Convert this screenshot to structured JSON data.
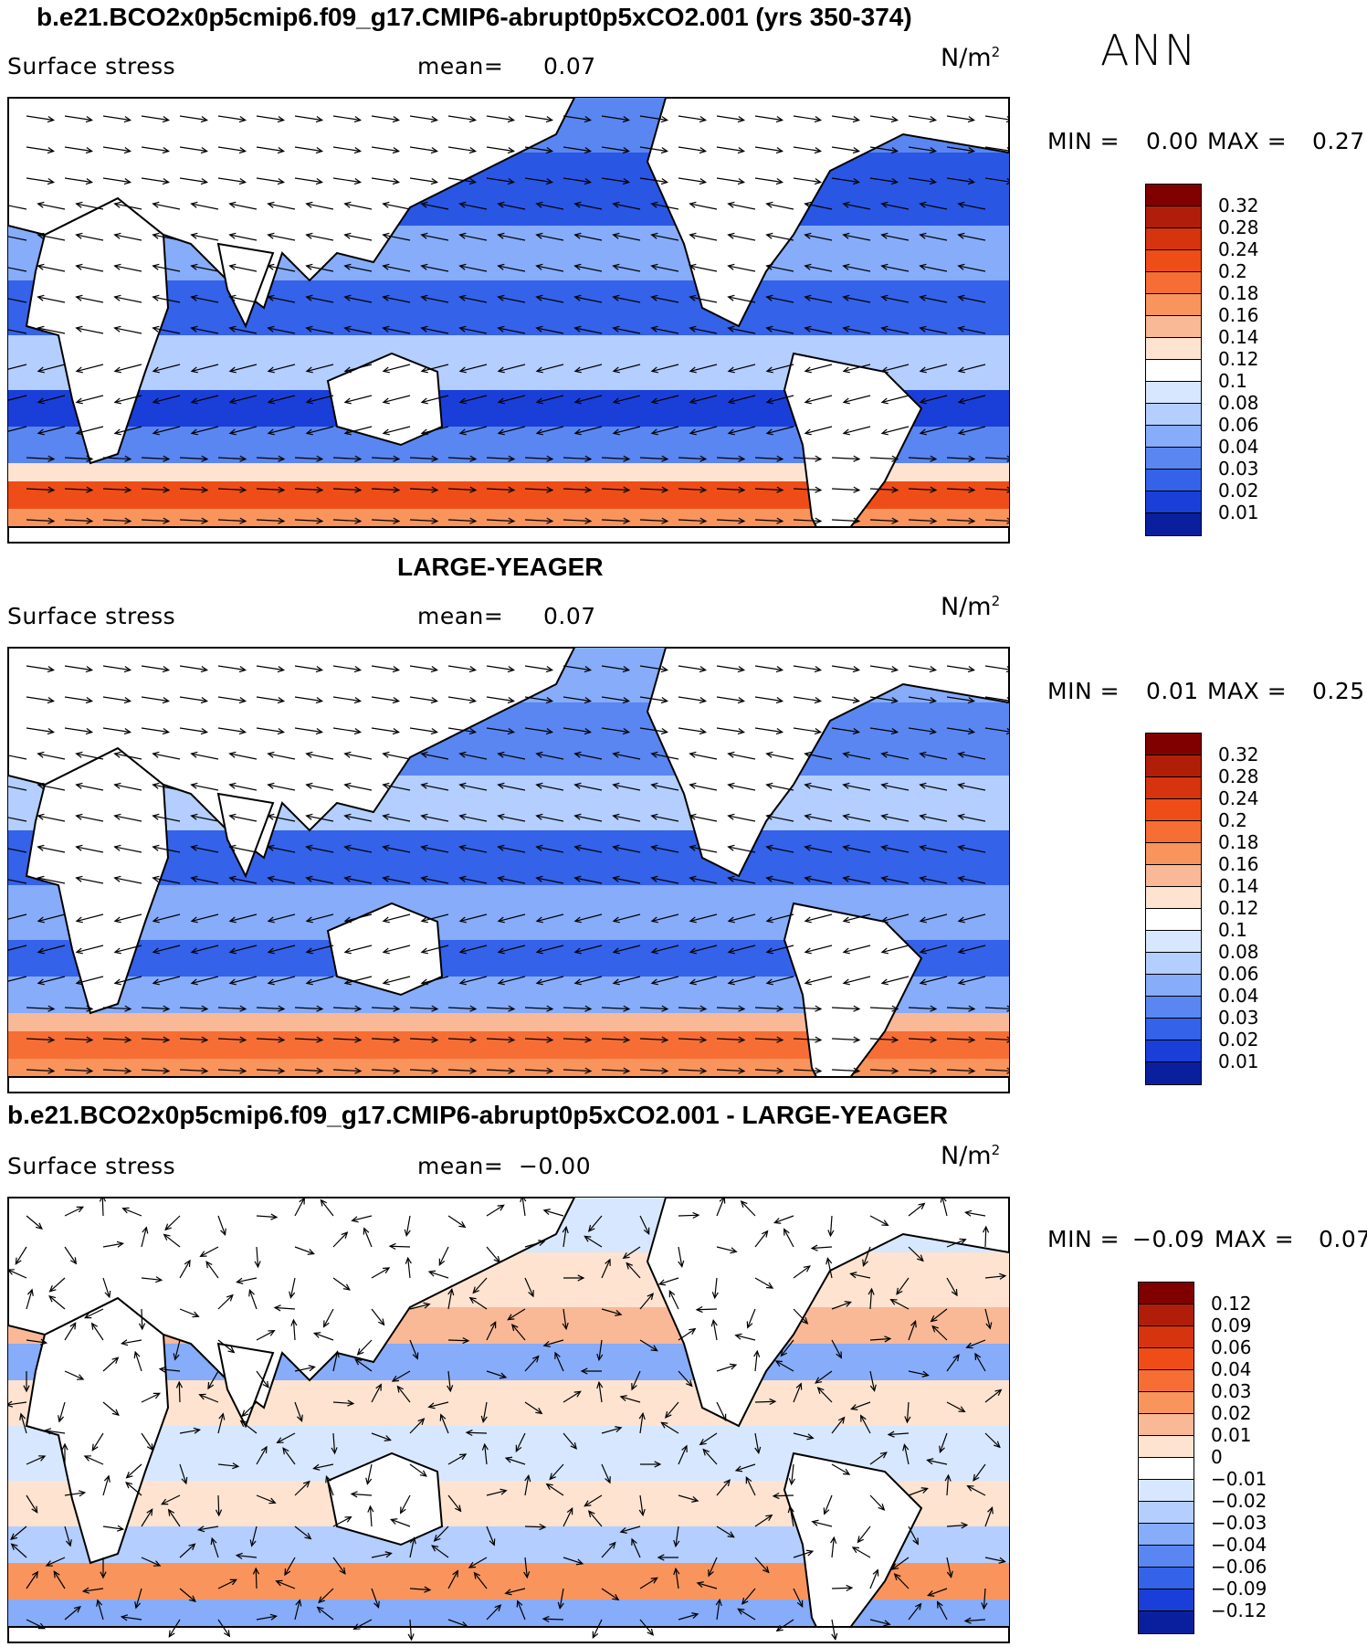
{
  "season": "ANN",
  "panels": [
    {
      "title": "b.e21.BCO2x0p5cmip6.f09_g17.CMIP6-abrupt0p5xCO2.001 (yrs 350-374)",
      "variable": "Surface stress",
      "mean_label": "mean=",
      "mean_value": "0.07",
      "units_base": "N/m",
      "units_exp": "2",
      "min_label": "MIN =",
      "min_value": "0.00",
      "max_label": "MAX =",
      "max_value": "0.27",
      "colorbar": {
        "ticks": [
          "0.32",
          "0.28",
          "0.24",
          "0.2",
          "0.18",
          "0.16",
          "0.14",
          "0.12",
          "0.1",
          "0.08",
          "0.06",
          "0.04",
          "0.03",
          "0.02",
          "0.01"
        ],
        "colors": [
          "#800000",
          "#b01e0a",
          "#d6330f",
          "#ef4d18",
          "#f76e35",
          "#f9945d",
          "#f9b896",
          "#fde3d0",
          "#ffffff",
          "#d7e7ff",
          "#b3ceff",
          "#86acfa",
          "#5a86f1",
          "#3462e8",
          "#1a3fd8",
          "#0a1f9e"
        ]
      }
    },
    {
      "title": "LARGE-YEAGER",
      "variable": "Surface stress",
      "mean_label": "mean=",
      "mean_value": "0.07",
      "units_base": "N/m",
      "units_exp": "2",
      "min_label": "MIN =",
      "min_value": "0.01",
      "max_label": "MAX =",
      "max_value": "0.25",
      "colorbar": {
        "ticks": [
          "0.32",
          "0.28",
          "0.24",
          "0.2",
          "0.18",
          "0.16",
          "0.14",
          "0.12",
          "0.1",
          "0.08",
          "0.06",
          "0.04",
          "0.03",
          "0.02",
          "0.01"
        ],
        "colors": [
          "#800000",
          "#b01e0a",
          "#d6330f",
          "#ef4d18",
          "#f76e35",
          "#f9945d",
          "#f9b896",
          "#fde3d0",
          "#ffffff",
          "#d7e7ff",
          "#b3ceff",
          "#86acfa",
          "#5a86f1",
          "#3462e8",
          "#1a3fd8",
          "#0a1f9e"
        ]
      }
    },
    {
      "title": "b.e21.BCO2x0p5cmip6.f09_g17.CMIP6-abrupt0p5xCO2.001 - LARGE-YEAGER",
      "variable": "Surface stress",
      "mean_label": "mean=",
      "mean_value": "−0.00",
      "units_base": "N/m",
      "units_exp": "2",
      "min_label": "MIN =",
      "min_value": "−0.09",
      "max_label": "MAX =",
      "max_value": "0.07",
      "colorbar": {
        "ticks": [
          "0.12",
          "0.09",
          "0.06",
          "0.04",
          "0.03",
          "0.02",
          "0.01",
          "0",
          "−0.01",
          "−0.02",
          "−0.03",
          "−0.04",
          "−0.06",
          "−0.09",
          "−0.12"
        ],
        "colors": [
          "#800000",
          "#b01e0a",
          "#d6330f",
          "#ef4d18",
          "#f76e35",
          "#f9945d",
          "#f9b896",
          "#fde3d0",
          "#ffffff",
          "#d7e7ff",
          "#b3ceff",
          "#86acfa",
          "#5a86f1",
          "#3462e8",
          "#1a3fd8",
          "#0a1f9e"
        ]
      }
    }
  ]
}
